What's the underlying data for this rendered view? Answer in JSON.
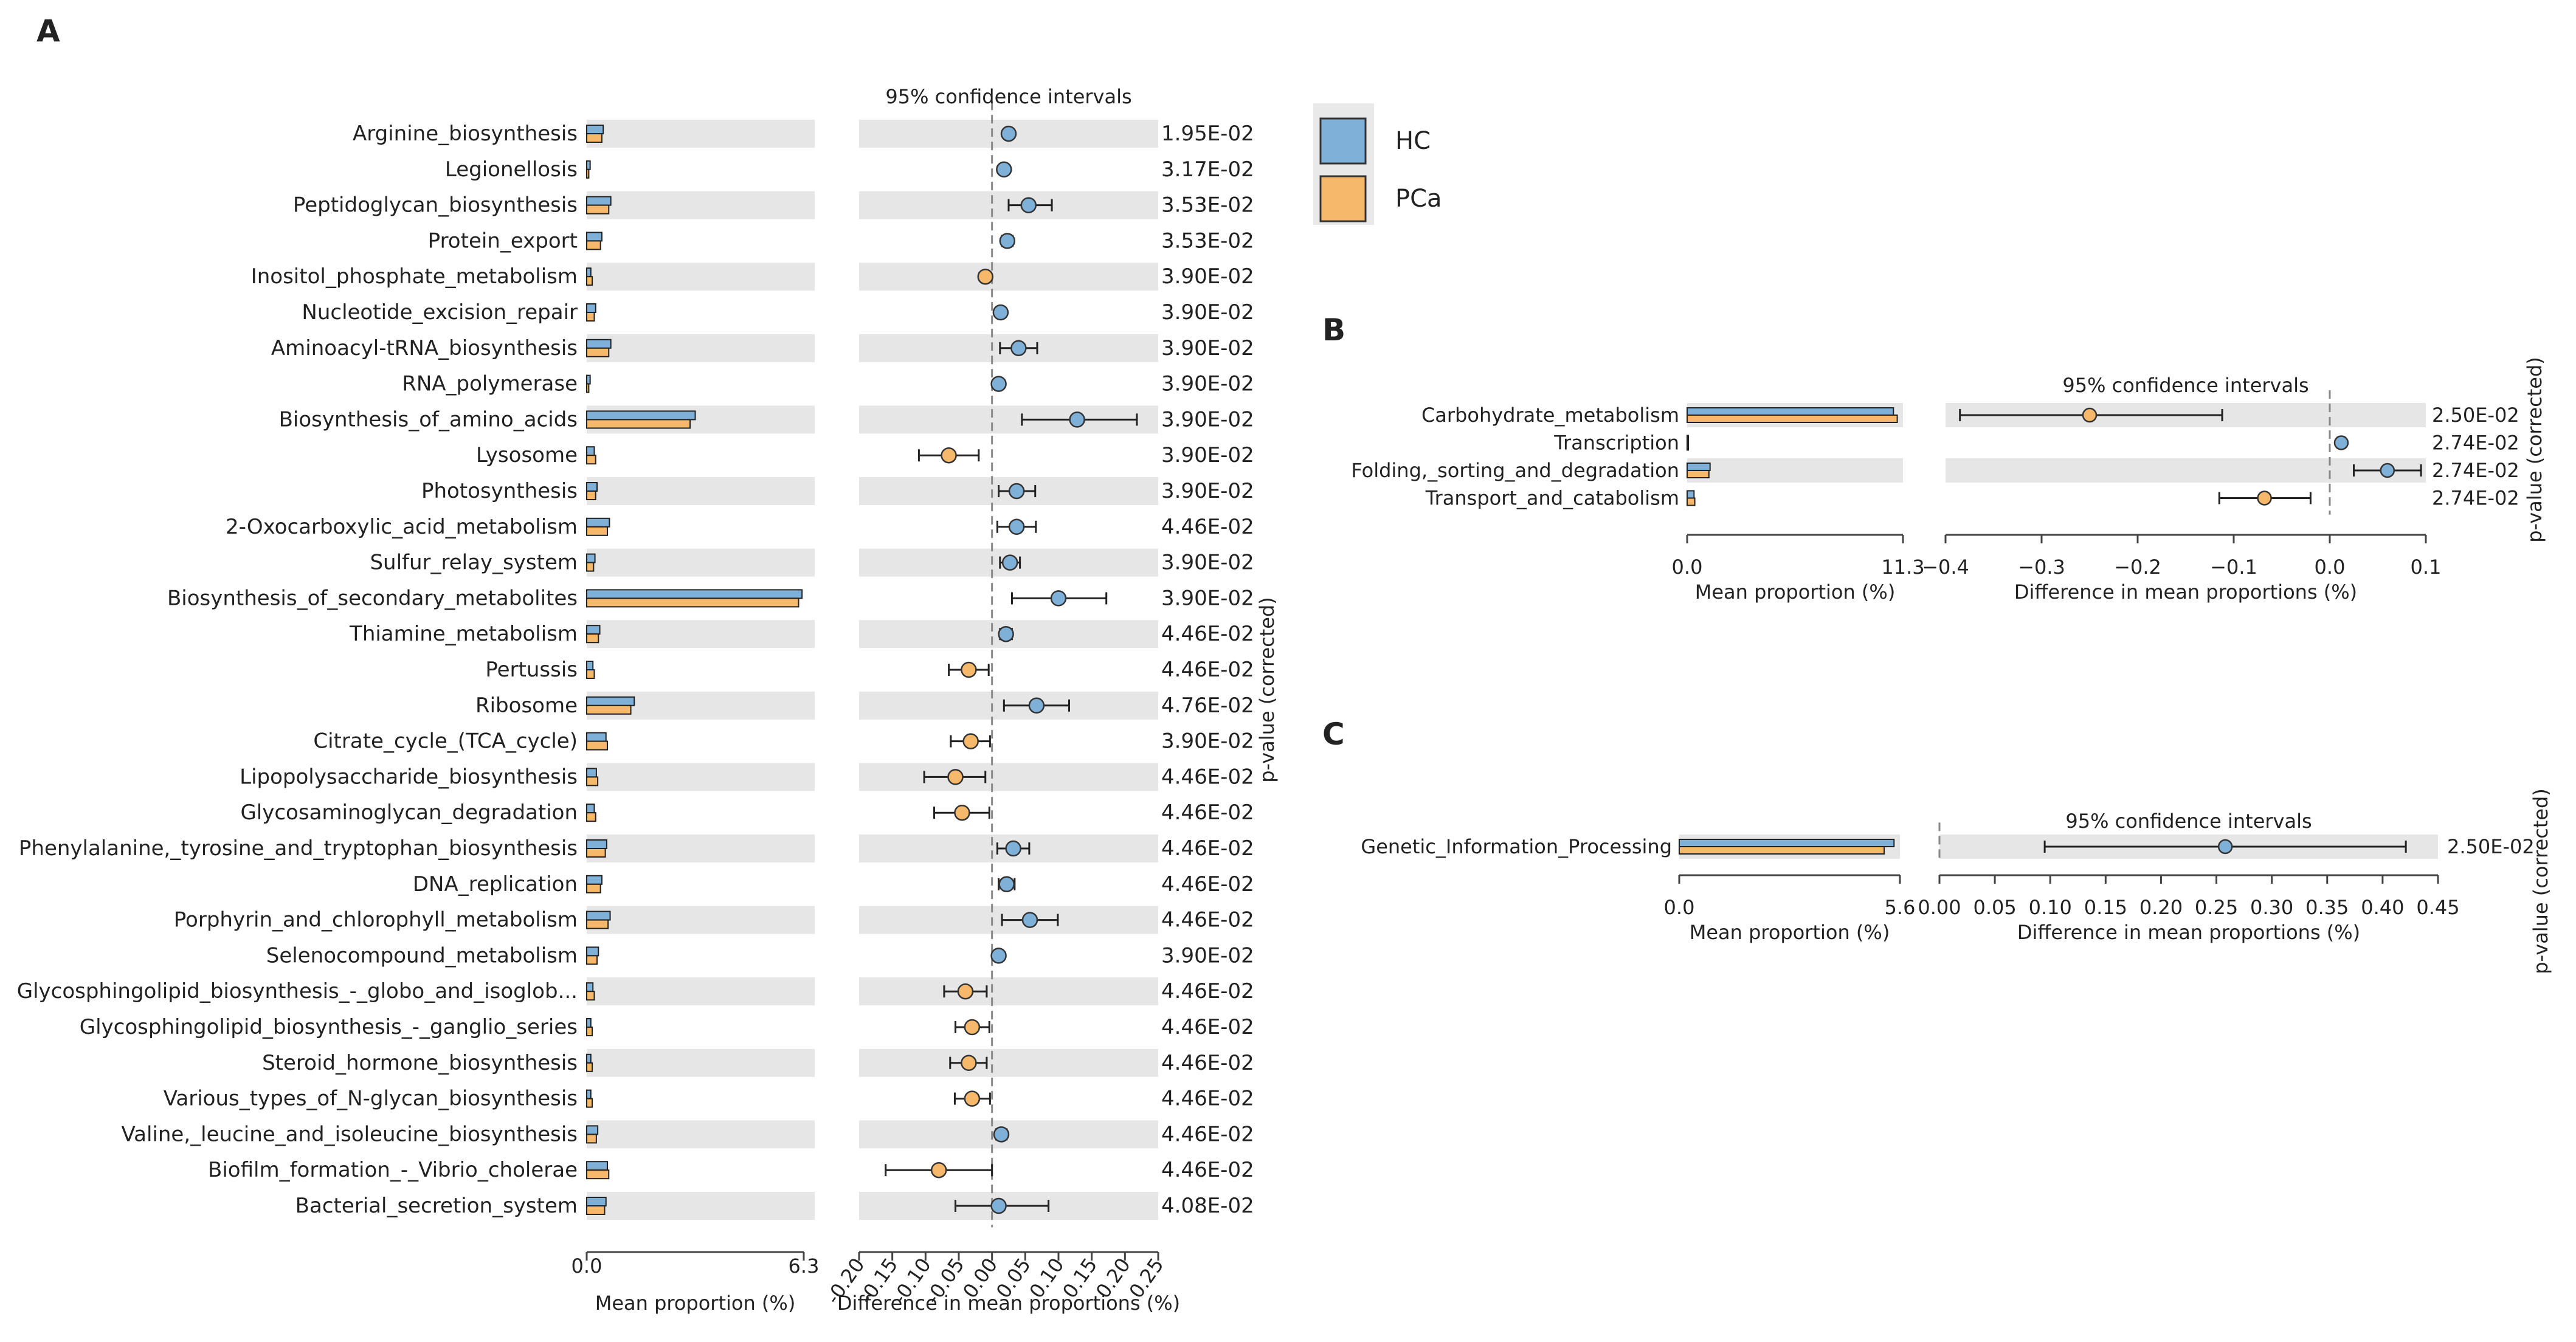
{
  "colors": {
    "hc": "#7fb0d8",
    "pca": "#f6b86b",
    "stripe": "#e6e6e6",
    "axis": "#444444",
    "ci": "#222222",
    "legend_bg": "#e9e9e9"
  },
  "legend": [
    {
      "name": "HC",
      "color": "#7fb0d8"
    },
    {
      "name": "PCa",
      "color": "#f6b86b"
    }
  ],
  "chart_data": [
    {
      "panel": "A",
      "type": "bar",
      "title": "95% confidence intervals",
      "xlabel_bars": "Mean proportion (%)",
      "xlabel_ci": "Difference in mean proportions (%)",
      "ylabel_right": "p-value (corrected)",
      "bar_ticks": [
        "0.0",
        "6.3"
      ],
      "bar_xlim": [
        0,
        6.3
      ],
      "ci_ticks": [
        "-0.20",
        "-0.15",
        "-0.10",
        "-0.05",
        "0.00",
        "0.05",
        "0.10",
        "0.15",
        "0.20",
        "0.25"
      ],
      "ci_xlim": [
        -0.2,
        0.25
      ],
      "categories": [
        "Arginine_biosynthesis",
        "Legionellosis",
        "Peptidoglycan_biosynthesis",
        "Protein_export",
        "Inositol_phosphate_metabolism",
        "Nucleotide_excision_repair",
        "Aminoacyl-tRNA_biosynthesis",
        "RNA_polymerase",
        "Biosynthesis_of_amino_acids",
        "Lysosome",
        "Photosynthesis",
        "2-Oxocarboxylic_acid_metabolism",
        "Sulfur_relay_system",
        "Biosynthesis_of_secondary_metabolites",
        "Thiamine_metabolism",
        "Pertussis",
        "Ribosome",
        "Citrate_cycle_(TCA_cycle)",
        "Lipopolysaccharide_biosynthesis",
        "Glycosaminoglycan_degradation",
        "Phenylalanine,_tyrosine_and_tryptophan_biosynthesis",
        "DNA_replication",
        "Porphyrin_and_chlorophyll_metabolism",
        "Selenocompound_metabolism",
        "Glycosphingolipid_biosynthesis_-_globo_and_isoglob...",
        "Glycosphingolipid_biosynthesis_-_ganglio_series",
        "Steroid_hormone_biosynthesis",
        "Various_types_of_N-glycan_biosynthesis",
        "Valine,_leucine_and_isoleucine_biosynthesis",
        "Biofilm_formation_-_Vibrio_cholerae",
        "Bacterial_secretion_system"
      ],
      "series": [
        {
          "name": "HC",
          "values": [
            0.48,
            0.1,
            0.7,
            0.44,
            0.12,
            0.26,
            0.7,
            0.1,
            3.15,
            0.22,
            0.3,
            0.66,
            0.24,
            6.25,
            0.38,
            0.18,
            1.38,
            0.56,
            0.28,
            0.22,
            0.58,
            0.44,
            0.68,
            0.34,
            0.18,
            0.12,
            0.12,
            0.12,
            0.32,
            0.6,
            0.56
          ]
        },
        {
          "name": "PCa",
          "values": [
            0.44,
            0.06,
            0.64,
            0.4,
            0.16,
            0.22,
            0.64,
            0.06,
            3.0,
            0.26,
            0.26,
            0.6,
            0.2,
            6.15,
            0.34,
            0.22,
            1.28,
            0.6,
            0.32,
            0.26,
            0.54,
            0.4,
            0.62,
            0.3,
            0.22,
            0.16,
            0.16,
            0.16,
            0.28,
            0.64,
            0.52
          ]
        }
      ],
      "effect": [
        0.025,
        0.018,
        0.055,
        0.023,
        -0.01,
        0.013,
        0.04,
        0.01,
        0.128,
        -0.065,
        0.037,
        0.037,
        0.027,
        0.1,
        0.021,
        -0.035,
        0.067,
        -0.032,
        -0.055,
        -0.045,
        0.032,
        0.022,
        0.057,
        0.01,
        -0.04,
        -0.03,
        -0.035,
        -0.03,
        0.014,
        -0.08,
        0.01
      ],
      "ci_low": [
        0.02,
        0.014,
        0.025,
        0.015,
        -0.015,
        0.008,
        0.012,
        0.006,
        0.045,
        -0.11,
        0.01,
        0.008,
        0.012,
        0.03,
        0.012,
        -0.065,
        0.018,
        -0.062,
        -0.102,
        -0.087,
        0.008,
        0.01,
        0.015,
        0.004,
        -0.072,
        -0.055,
        -0.063,
        -0.056,
        0.006,
        -0.16,
        -0.055
      ],
      "ci_high": [
        0.03,
        0.022,
        0.09,
        0.031,
        -0.005,
        0.018,
        0.068,
        0.014,
        0.218,
        -0.02,
        0.065,
        0.066,
        0.042,
        0.172,
        0.03,
        -0.005,
        0.116,
        -0.003,
        -0.01,
        -0.004,
        0.056,
        0.034,
        0.099,
        0.016,
        -0.008,
        -0.004,
        -0.008,
        -0.003,
        0.022,
        0.0,
        0.085
      ],
      "pvalues": [
        "1.95E-02",
        "3.17E-02",
        "3.53E-02",
        "3.53E-02",
        "3.90E-02",
        "3.90E-02",
        "3.90E-02",
        "3.90E-02",
        "3.90E-02",
        "3.90E-02",
        "3.90E-02",
        "4.46E-02",
        "3.90E-02",
        "3.90E-02",
        "4.46E-02",
        "4.46E-02",
        "4.76E-02",
        "3.90E-02",
        "4.46E-02",
        "4.46E-02",
        "4.46E-02",
        "4.46E-02",
        "4.46E-02",
        "3.90E-02",
        "4.46E-02",
        "4.46E-02",
        "4.46E-02",
        "4.46E-02",
        "4.46E-02",
        "4.46E-02",
        "4.08E-02"
      ]
    },
    {
      "panel": "B",
      "type": "bar",
      "title": "95% confidence intervals",
      "xlabel_bars": "Mean proportion (%)",
      "xlabel_ci": "Difference in mean proportions (%)",
      "ylabel_right": "p-value (corrected)",
      "bar_ticks": [
        "0.0",
        "11.3"
      ],
      "bar_xlim": [
        0,
        11.3
      ],
      "ci_ticks": [
        "−0.4",
        "−0.3",
        "−0.2",
        "−0.1",
        "0.0",
        "0.1"
      ],
      "ci_xlim": [
        -0.4,
        0.1
      ],
      "categories": [
        "Carbohydrate_metabolism",
        "Transcription",
        "Folding,_sorting_and_degradation",
        "Transport_and_catabolism"
      ],
      "series": [
        {
          "name": "HC",
          "values": [
            10.8,
            0.06,
            1.2,
            0.36
          ]
        },
        {
          "name": "PCa",
          "values": [
            11.0,
            0.06,
            1.14,
            0.4
          ]
        }
      ],
      "effect": [
        -0.25,
        0.012,
        0.06,
        -0.068
      ],
      "ci_low": [
        -0.385,
        0.008,
        0.025,
        -0.115
      ],
      "ci_high": [
        -0.112,
        0.016,
        0.095,
        -0.02
      ],
      "pvalues": [
        "2.50E-02",
        "2.74E-02",
        "2.74E-02",
        "2.74E-02"
      ]
    },
    {
      "panel": "C",
      "type": "bar",
      "title": "95% confidence intervals",
      "xlabel_bars": "Mean proportion (%)",
      "xlabel_ci": "Difference in mean proportions (%)",
      "ylabel_right": "p-value (corrected)",
      "bar_ticks": [
        "0.0",
        "5.6"
      ],
      "bar_xlim": [
        0,
        5.6
      ],
      "ci_ticks": [
        "0.00",
        "0.05",
        "0.10",
        "0.15",
        "0.20",
        "0.25",
        "0.30",
        "0.35",
        "0.40",
        "0.45"
      ],
      "ci_xlim": [
        0,
        0.45
      ],
      "categories": [
        "Genetic_Information_Processing"
      ],
      "series": [
        {
          "name": "HC",
          "values": [
            5.45
          ]
        },
        {
          "name": "PCa",
          "values": [
            5.2
          ]
        }
      ],
      "effect": [
        0.258
      ],
      "ci_low": [
        0.095
      ],
      "ci_high": [
        0.421
      ],
      "pvalues": [
        "2.50E-02"
      ]
    }
  ]
}
